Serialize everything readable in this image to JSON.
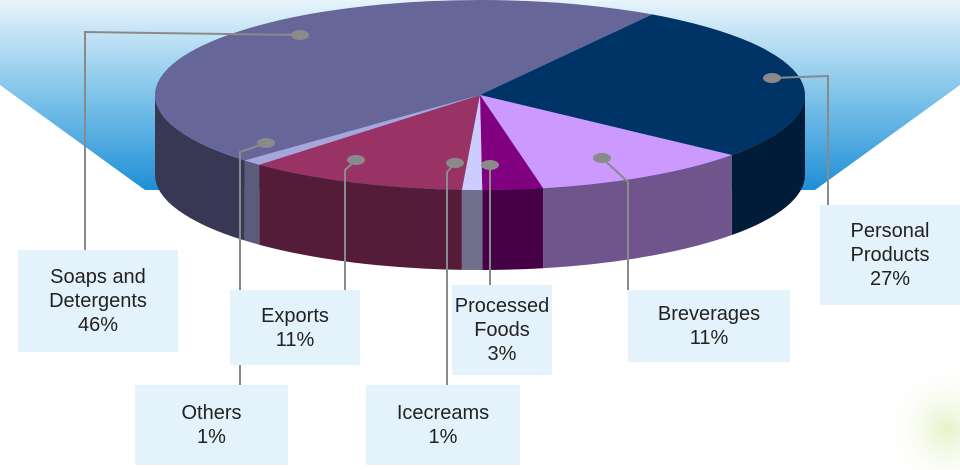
{
  "chart_data": {
    "type": "pie3d",
    "categories": [
      "Soaps and Detergents",
      "Personal Products",
      "Breverages",
      "Processed Foods",
      "Icecreams",
      "Exports",
      "Others"
    ],
    "values": [
      46,
      27,
      11,
      3,
      1,
      11,
      1
    ],
    "value_labels": [
      "46%",
      "27%",
      "11%",
      "3%",
      "1%",
      "11%",
      "1%"
    ],
    "colors": [
      "#666699",
      "#003366",
      "#cc99ff",
      "#800080",
      "#ccccff",
      "#993366",
      "#a6a6dd"
    ]
  }
}
